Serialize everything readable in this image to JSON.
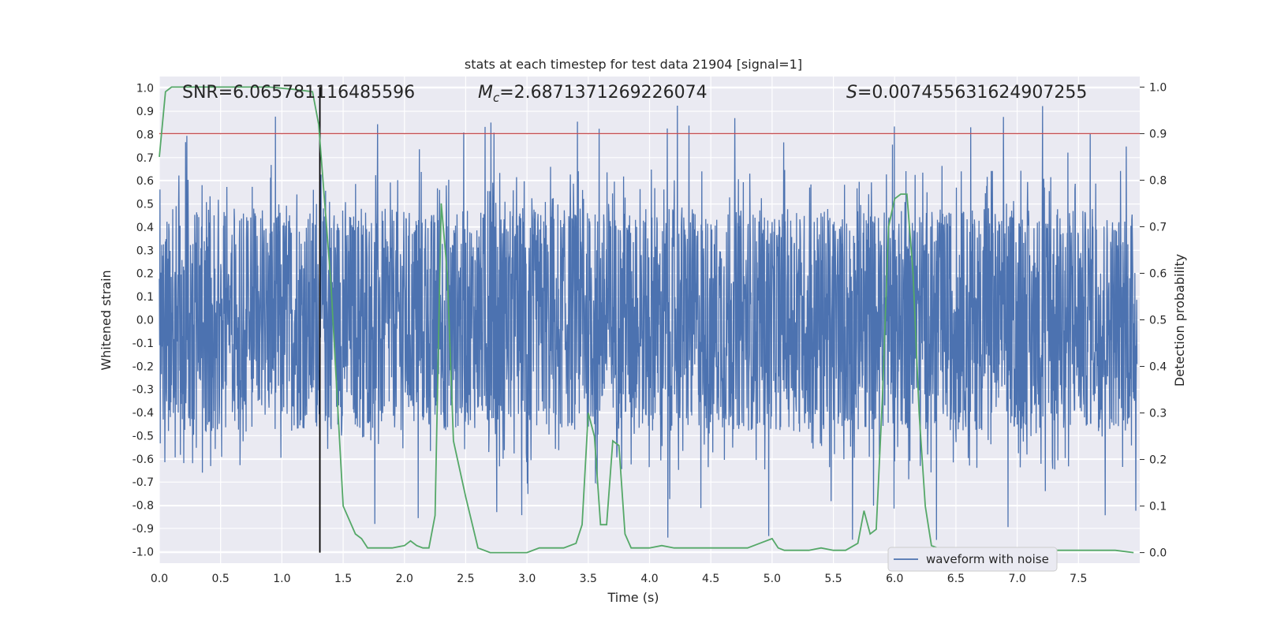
{
  "chart_data": {
    "type": "line",
    "title": "stats at each timestep for test data 21904 [signal=1]",
    "xlabel": "Time (s)",
    "ylabel": "Whitened strain",
    "y2label": "Detection probability",
    "xlim": [
      0.0,
      8.0
    ],
    "ylim": [
      -1.05,
      1.05
    ],
    "y2lim": [
      -0.0227,
      1.0227
    ],
    "xticks": [
      0.0,
      0.5,
      1.0,
      1.5,
      2.0,
      2.5,
      3.0,
      3.5,
      4.0,
      4.5,
      5.0,
      5.5,
      6.0,
      6.5,
      7.0,
      7.5
    ],
    "xtick_labels": [
      "0.0",
      "0.5",
      "1.0",
      "1.5",
      "2.0",
      "2.5",
      "3.0",
      "3.5",
      "4.0",
      "4.5",
      "5.0",
      "5.5",
      "6.0",
      "6.5",
      "7.0",
      "7.5"
    ],
    "yticks": [
      1.0,
      0.9,
      0.8,
      0.7,
      0.6,
      0.5,
      0.4,
      0.3,
      0.2,
      0.1,
      0.0,
      -0.1,
      -0.2,
      -0.3,
      -0.4,
      -0.5,
      -0.6,
      -0.7,
      -0.8,
      -0.9,
      -1.0
    ],
    "ytick_labels": [
      "1.0",
      "0.9",
      "0.8",
      "0.7",
      "0.6",
      "0.5",
      "0.4",
      "0.3",
      "0.2",
      "0.1",
      "0.0",
      "-0.1",
      "-0.2",
      "-0.3",
      "-0.4",
      "-0.5",
      "-0.6",
      "-0.7",
      "-0.8",
      "-0.9",
      "-1.0"
    ],
    "y2ticks": [
      1.0,
      0.9,
      0.8,
      0.7,
      0.6,
      0.5,
      0.4,
      0.3,
      0.2,
      0.1,
      0.0
    ],
    "y2tick_labels": [
      "1.0",
      "0.9",
      "0.8",
      "0.7",
      "0.6",
      "0.5",
      "0.4",
      "0.3",
      "0.2",
      "0.1",
      "0.0"
    ],
    "threshold": {
      "value": 0.9,
      "axis": "y2",
      "color": "#c44e52"
    },
    "vline": {
      "x": 1.31,
      "color": "#000000"
    },
    "annotations": {
      "snr": "SNR=6.065781116485596",
      "mc_symbol": "M",
      "mc_sub": "c",
      "mc_value": "=2.6871371269226074",
      "s_symbol": "S",
      "s_value": "=0.007455631624907255"
    },
    "legend": {
      "label": "waveform with noise",
      "placement": "lower-right"
    },
    "series": [
      {
        "name": "waveform with noise",
        "color": "#4c72b0",
        "note": "dense noise trace, approx. uniform in [-0.55, 0.55] with spikes up to +/-0.95"
      },
      {
        "name": "detection probability",
        "color": "#55a868",
        "axis": "y2",
        "x": [
          0.0,
          0.05,
          0.1,
          0.2,
          0.3,
          0.5,
          0.7,
          0.9,
          1.1,
          1.25,
          1.3,
          1.4,
          1.5,
          1.6,
          1.65,
          1.7,
          1.8,
          1.9,
          2.0,
          2.05,
          2.1,
          2.15,
          2.2,
          2.25,
          2.3,
          2.35,
          2.4,
          2.5,
          2.6,
          2.7,
          2.8,
          2.9,
          3.0,
          3.1,
          3.2,
          3.3,
          3.4,
          3.45,
          3.5,
          3.55,
          3.6,
          3.65,
          3.7,
          3.75,
          3.8,
          3.85,
          3.9,
          4.0,
          4.1,
          4.2,
          4.3,
          4.4,
          4.5,
          4.6,
          4.7,
          4.8,
          4.9,
          5.0,
          5.05,
          5.1,
          5.2,
          5.3,
          5.4,
          5.5,
          5.6,
          5.7,
          5.75,
          5.8,
          5.85,
          5.9,
          5.95,
          6.0,
          6.05,
          6.1,
          6.15,
          6.2,
          6.25,
          6.3,
          6.4,
          6.5,
          6.6,
          6.7,
          6.8,
          6.9,
          7.0,
          7.2,
          7.4,
          7.6,
          7.8,
          7.95
        ],
        "y": [
          0.85,
          0.99,
          1.0,
          1.0,
          1.0,
          1.0,
          1.0,
          1.0,
          0.995,
          0.99,
          0.92,
          0.58,
          0.1,
          0.04,
          0.03,
          0.01,
          0.01,
          0.01,
          0.015,
          0.025,
          0.015,
          0.01,
          0.01,
          0.08,
          0.75,
          0.6,
          0.24,
          0.12,
          0.01,
          0.0,
          0.0,
          0.0,
          0.0,
          0.01,
          0.01,
          0.01,
          0.02,
          0.06,
          0.3,
          0.25,
          0.06,
          0.06,
          0.24,
          0.23,
          0.04,
          0.01,
          0.01,
          0.01,
          0.015,
          0.01,
          0.01,
          0.01,
          0.01,
          0.01,
          0.01,
          0.01,
          0.02,
          0.03,
          0.01,
          0.005,
          0.005,
          0.005,
          0.01,
          0.005,
          0.005,
          0.02,
          0.09,
          0.04,
          0.05,
          0.33,
          0.7,
          0.76,
          0.77,
          0.77,
          0.6,
          0.3,
          0.1,
          0.015,
          0.005,
          0.005,
          0.005,
          0.005,
          0.005,
          0.005,
          0.005,
          0.005,
          0.005,
          0.005,
          0.005,
          0.0
        ]
      }
    ]
  }
}
